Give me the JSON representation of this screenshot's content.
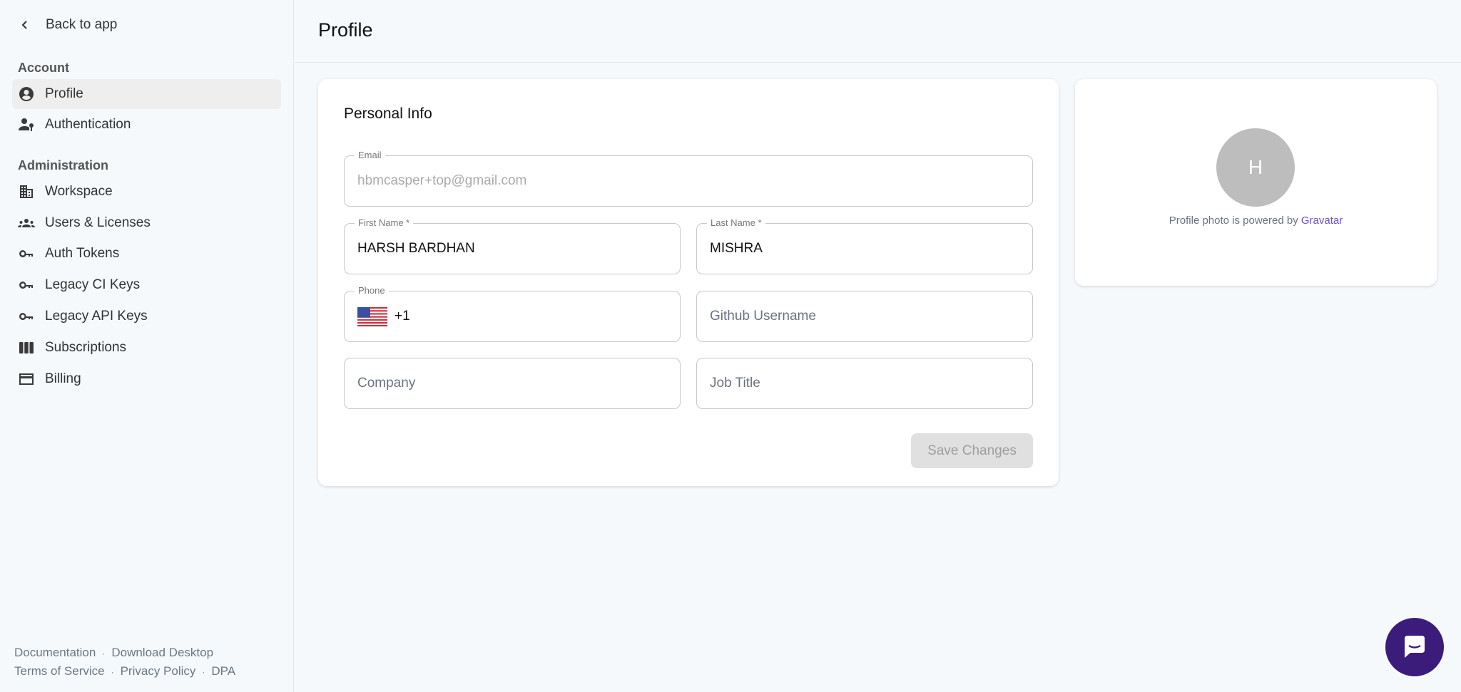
{
  "sidebar": {
    "back_label": "Back to app",
    "sections": [
      {
        "label": "Account"
      },
      {
        "label": "Administration"
      }
    ],
    "items": [
      {
        "label": "Profile",
        "icon": "account-circle-icon",
        "active": true
      },
      {
        "label": "Authentication",
        "icon": "user-key-icon"
      },
      {
        "label": "Workspace",
        "icon": "building-icon"
      },
      {
        "label": "Users & Licenses",
        "icon": "group-icon"
      },
      {
        "label": "Auth Tokens",
        "icon": "key-icon"
      },
      {
        "label": "Legacy CI Keys",
        "icon": "key-icon"
      },
      {
        "label": "Legacy API Keys",
        "icon": "key-icon"
      },
      {
        "label": "Subscriptions",
        "icon": "columns-icon"
      },
      {
        "label": "Billing",
        "icon": "credit-card-icon"
      }
    ],
    "footer": {
      "documentation": "Documentation",
      "download": "Download Desktop",
      "terms": "Terms of Service",
      "privacy": "Privacy Policy",
      "dpa": "DPA",
      "separator": "·"
    }
  },
  "header": {
    "title": "Profile"
  },
  "personal_info": {
    "title": "Personal Info",
    "email": {
      "label": "Email",
      "value": "hbmcasper+top@gmail.com"
    },
    "first_name": {
      "label": "First Name *",
      "value": "HARSH BARDHAN"
    },
    "last_name": {
      "label": "Last Name *",
      "value": "MISHRA"
    },
    "phone": {
      "label": "Phone",
      "country": "US",
      "value": "+1"
    },
    "github": {
      "placeholder": "Github Username"
    },
    "company": {
      "placeholder": "Company"
    },
    "job_title": {
      "placeholder": "Job Title"
    },
    "save_label": "Save Changes"
  },
  "photo": {
    "initial": "H",
    "caption": "Profile photo is powered by",
    "link": "Gravatar"
  },
  "colors": {
    "accent": "#6a4fd8",
    "chat": "#3b1c7a",
    "avatar": "#bdbdbd"
  }
}
